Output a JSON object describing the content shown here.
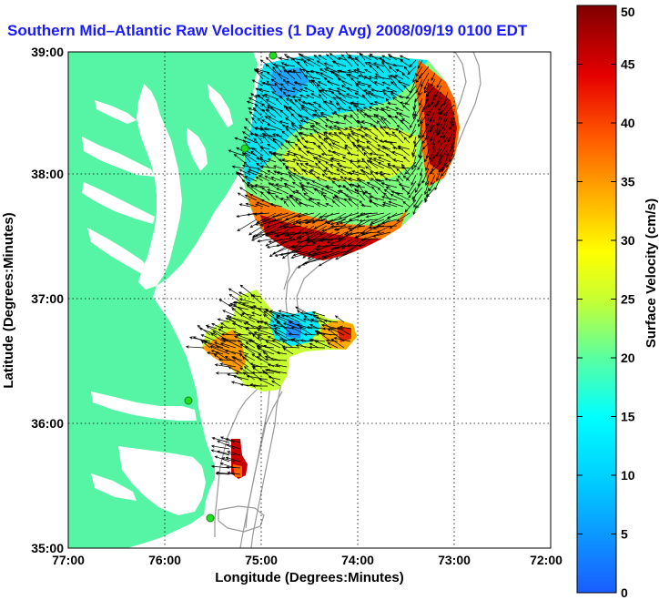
{
  "title": "Southern Mid–Atlantic Raw Velocities (1 Day Avg) 2008/09/19 0100 EDT",
  "x_axis": {
    "label": "Longitude (Degrees:Minutes)",
    "ticks": [
      "77:00",
      "76:00",
      "75:00",
      "74:00",
      "73:00",
      "72:00"
    ]
  },
  "y_axis": {
    "label": "Latitude (Degrees:Minutes)",
    "ticks": [
      "39:00",
      "38:00",
      "37:00",
      "36:00",
      "35:00"
    ]
  },
  "colorbar": {
    "label": "Surface Velocity (cm/s)",
    "min": 0,
    "max": 50,
    "ticks": [
      "50",
      "45",
      "40",
      "35",
      "30",
      "25",
      "20",
      "15",
      "10",
      "5",
      "0"
    ]
  },
  "colors": {
    "land": "#55f5a5",
    "title": "#1a1aff",
    "arrow": "#000000",
    "bathymetry": "#999999",
    "station": "#22dd22"
  }
}
